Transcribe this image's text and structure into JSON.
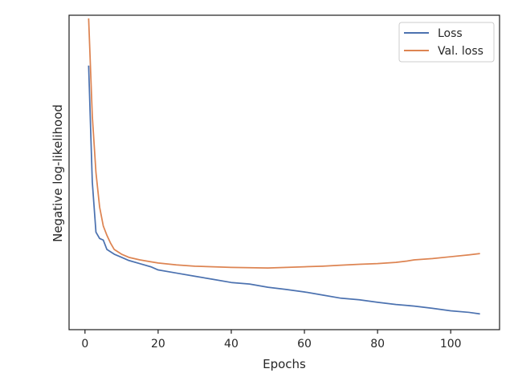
{
  "chart_data": {
    "type": "line",
    "title": "",
    "xlabel": "Epochs",
    "ylabel": "Negative log-likelihood",
    "xlim": [
      -4.35,
      113.35
    ],
    "ylim": [
      0,
      1
    ],
    "x_ticks": [
      0,
      20,
      40,
      60,
      80,
      100
    ],
    "y_ticks_shown": false,
    "grid": false,
    "legend": "upper-right",
    "series": [
      {
        "name": "Loss",
        "color": "#4c72b0",
        "x": [
          1,
          2,
          3,
          4,
          5,
          6,
          8,
          10,
          12,
          15,
          18,
          20,
          25,
          30,
          35,
          40,
          45,
          50,
          55,
          60,
          65,
          70,
          75,
          80,
          85,
          90,
          95,
          100,
          105,
          108
        ],
        "y": [
          0.84,
          0.47,
          0.31,
          0.29,
          0.285,
          0.255,
          0.24,
          0.23,
          0.22,
          0.21,
          0.2,
          0.19,
          0.18,
          0.17,
          0.16,
          0.15,
          0.145,
          0.135,
          0.128,
          0.12,
          0.11,
          0.1,
          0.095,
          0.087,
          0.08,
          0.075,
          0.068,
          0.06,
          0.055,
          0.05
        ]
      },
      {
        "name": "Val. loss",
        "color": "#dd8452",
        "x": [
          1,
          2,
          3,
          4,
          5,
          6,
          7,
          8,
          10,
          12,
          15,
          18,
          20,
          25,
          30,
          35,
          40,
          45,
          50,
          55,
          60,
          65,
          70,
          75,
          80,
          85,
          88,
          90,
          95,
          100,
          105,
          108
        ],
        "y": [
          0.99,
          0.68,
          0.5,
          0.39,
          0.33,
          0.3,
          0.275,
          0.255,
          0.24,
          0.23,
          0.222,
          0.216,
          0.212,
          0.206,
          0.202,
          0.2,
          0.198,
          0.197,
          0.196,
          0.198,
          0.2,
          0.202,
          0.205,
          0.208,
          0.21,
          0.214,
          0.218,
          0.222,
          0.226,
          0.232,
          0.238,
          0.242
        ]
      }
    ]
  }
}
